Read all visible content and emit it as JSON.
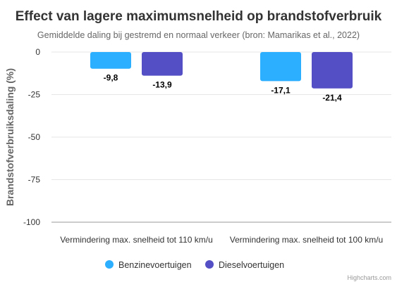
{
  "chart_data": {
    "type": "bar",
    "title": "Effect van lagere maximumsnelheid op brandstofverbruik",
    "subtitle": "Gemiddelde daling bij gestremd en normaal verkeer (bron: Mamarikas et al., 2022)",
    "xlabel": "",
    "ylabel": "Brandstofverbruiksdaling (%)",
    "ylim": [
      -100,
      0
    ],
    "yticks": [
      0,
      -25,
      -50,
      -75,
      -100
    ],
    "ytick_labels": [
      "0",
      "-25",
      "-50",
      "-75",
      "-100"
    ],
    "categories": [
      "Vermindering max. snelheid tot 110 km/u",
      "Vermindering max. snelheid tot 100 km/u"
    ],
    "series": [
      {
        "name": "Benzinevoertuigen",
        "color": "#2caffe",
        "values": [
          -9.8,
          -17.1
        ],
        "labels": [
          "-9,8",
          "-17,1"
        ]
      },
      {
        "name": "Dieselvoertuigen",
        "color": "#544fc5",
        "values": [
          -13.9,
          -21.4
        ],
        "labels": [
          "-13,9",
          "-21,4"
        ]
      }
    ],
    "grid": true,
    "legend": "bottom-center"
  },
  "credits": "Highcharts.com"
}
